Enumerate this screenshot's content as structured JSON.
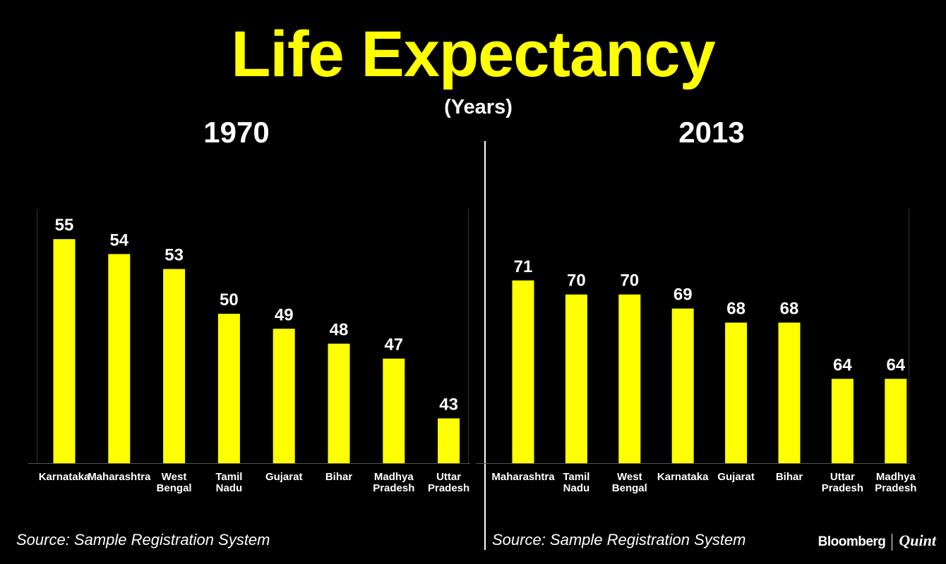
{
  "title": "Life Expectancy",
  "subtitle": "(Years)",
  "source_left": "Source: Sample Registration System",
  "source_right": "Source: Sample Registration System",
  "brand": {
    "name1": "Bloomberg",
    "name2": "Quint"
  },
  "colors": {
    "bar": "#ffff00",
    "background": "#000000",
    "text": "#ffffff",
    "title": "#ffff00"
  },
  "chart_data": [
    {
      "type": "bar",
      "title": "1970",
      "xlabel": "",
      "ylabel": "Years",
      "categories": [
        "Karnataka",
        "Maharashtra",
        "West Bengal",
        "Tamil Nadu",
        "Gujarat",
        "Bihar",
        "Madhya Pradesh",
        "Uttar Pradesh"
      ],
      "category_lines": [
        [
          "Karnataka"
        ],
        [
          "Maharashtra"
        ],
        [
          "West",
          "Bengal"
        ],
        [
          "Tamil",
          "Nadu"
        ],
        [
          "Gujarat"
        ],
        [
          "Bihar"
        ],
        [
          "Madhya",
          "Pradesh"
        ],
        [
          "Uttar",
          "Pradesh"
        ]
      ],
      "values": [
        55,
        54,
        53,
        50,
        49,
        48,
        47,
        43
      ],
      "ylim": [
        40,
        56
      ]
    },
    {
      "type": "bar",
      "title": "2013",
      "xlabel": "",
      "ylabel": "Years",
      "categories": [
        "Maharashtra",
        "Tamil Nadu",
        "West Bengal",
        "Karnataka",
        "Gujarat",
        "Bihar",
        "Uttar Pradesh",
        "Madhya Pradesh"
      ],
      "category_lines": [
        [
          "Maharashtra"
        ],
        [
          "Tamil",
          "Nadu"
        ],
        [
          "West",
          "Bengal"
        ],
        [
          "Karnataka"
        ],
        [
          "Gujarat"
        ],
        [
          "Bihar"
        ],
        [
          "Uttar",
          "Pradesh"
        ],
        [
          "Madhya",
          "Pradesh"
        ]
      ],
      "values": [
        71,
        70,
        70,
        69,
        68,
        68,
        64,
        64
      ],
      "ylim": [
        58,
        75
      ]
    }
  ]
}
